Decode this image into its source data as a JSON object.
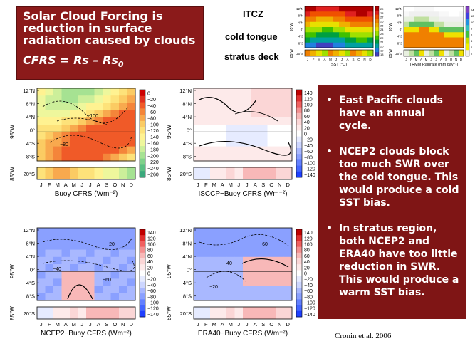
{
  "title": {
    "line1": "Solar Cloud Forcing is",
    "line2": "reduction in surface",
    "line3": "radiation caused by clouds",
    "equation": "CFRS = Rs – Rs",
    "equation_sub": "0"
  },
  "region_labels": [
    "ITCZ",
    "cold tongue",
    "stratus deck"
  ],
  "top_mini_plots": {
    "sst": {
      "xlabel": "SST (°C)",
      "months": [
        "J",
        "F",
        "M",
        "A",
        "M",
        "J",
        "J",
        "A",
        "S",
        "O",
        "N",
        "D"
      ],
      "lat_ticks": [
        "12°N",
        "8°N",
        "4°N",
        "0°",
        "4°S",
        "8°S"
      ],
      "lower_tick": "20°S",
      "lon_label": "95°W",
      "lon_label2": "85°W",
      "cbar_ticks": [
        "29",
        "28",
        "27",
        "26",
        "25",
        "24",
        "23",
        "22",
        "21",
        "20",
        "19",
        "18"
      ]
    },
    "trmm": {
      "xlabel": "TRMM Rainrate (mm day⁻¹)",
      "months": [
        "J",
        "F",
        "M",
        "A",
        "M",
        "J",
        "J",
        "A",
        "S",
        "O",
        "N",
        "D"
      ],
      "lat_ticks": [
        "12°N",
        "8°N",
        "4°N",
        "0°",
        "4°S",
        "8°S"
      ],
      "lower_tick": "20°S",
      "lon_label": "95°W",
      "lon_label2": "85°W",
      "cbar_ticks": [
        "14",
        "12",
        "10",
        "8",
        "6",
        "4",
        "2",
        "1"
      ]
    }
  },
  "panels": [
    {
      "xlabel": "Buoy CFRS (Wm⁻²)",
      "cbar_ticks": [
        "0",
        "−20",
        "−40",
        "−60",
        "−80",
        "−100",
        "−120",
        "−140",
        "−160",
        "−180",
        "−200",
        "−220",
        "−240",
        "−260"
      ],
      "contour_labels": [
        "−100",
        "−80"
      ]
    },
    {
      "xlabel": "ISCCP−Buoy CFRS (Wm⁻²)",
      "cbar_ticks": [
        "140",
        "120",
        "100",
        "80",
        "60",
        "40",
        "20",
        "0",
        "−20",
        "−40",
        "−60",
        "−80",
        "−100",
        "−120",
        "−140"
      ],
      "contour_labels": []
    },
    {
      "xlabel": "NCEP2−Buoy CFRS (Wm⁻²)",
      "cbar_ticks": [
        "140",
        "120",
        "100",
        "80",
        "60",
        "40",
        "20",
        "0",
        "−20",
        "−40",
        "−60",
        "−80",
        "−100",
        "−120",
        "−140"
      ],
      "contour_labels": [
        "−20",
        "−40",
        "−60"
      ]
    },
    {
      "xlabel": "ERA40−Buoy CFRS (Wm⁻²)",
      "cbar_ticks": [
        "140",
        "120",
        "100",
        "80",
        "60",
        "40",
        "20",
        "0",
        "−20",
        "−40",
        "−60",
        "−80",
        "−100",
        "−120",
        "−140"
      ],
      "contour_labels": [
        "−60",
        "−40",
        "−20"
      ]
    }
  ],
  "axes": {
    "lat_ticks": [
      "12°N",
      "8°N",
      "4°N",
      "0°",
      "4°S",
      "8°S"
    ],
    "lower_tick": "20°S",
    "lon_upper": "95°W",
    "lon_lower": "85°W",
    "months": [
      "J",
      "F",
      "M",
      "A",
      "M",
      "J",
      "J",
      "A",
      "S",
      "O",
      "N",
      "D"
    ]
  },
  "bullets": [
    "East Pacific clouds have an annual cycle.",
    "NCEP2 clouds block too much SWR  over the cold tongue. This would produce a cold SST bias.",
    "In stratus region, both NCEP2 and ERA40 have too little reduction in SWR. This would produce a warm SST bias."
  ],
  "citation": "Cronin et al. 2006",
  "colors": {
    "box": "#8b1a1a",
    "text_on_box": "#ffffff"
  }
}
